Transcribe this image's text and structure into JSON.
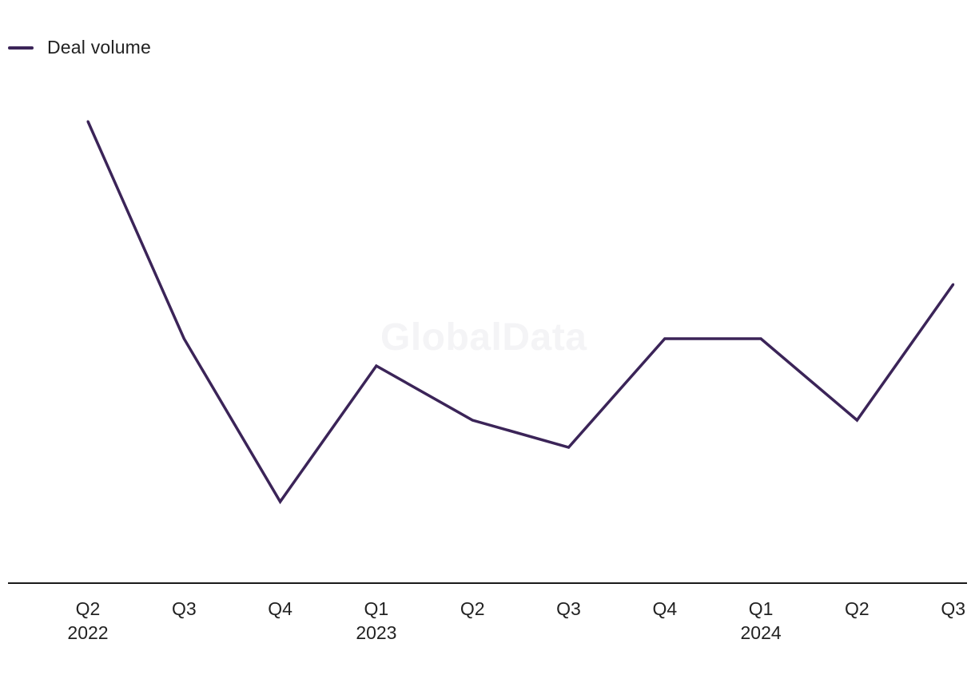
{
  "chart_data": {
    "type": "line",
    "title": "",
    "xlabel": "",
    "ylabel": "",
    "categories": [
      "Q2",
      "Q3",
      "Q4",
      "Q1",
      "Q2",
      "Q3",
      "Q4",
      "Q1",
      "Q2",
      "Q3"
    ],
    "year_labels": [
      "2022",
      "",
      "",
      "2023",
      "",
      "",
      "",
      "2024",
      "",
      ""
    ],
    "series": [
      {
        "name": "Deal volume",
        "color": "#3b2458",
        "values": [
          17,
          9,
          3,
          8,
          6,
          5,
          9,
          9,
          6,
          11
        ]
      }
    ],
    "ylim": [
      0,
      20
    ],
    "grid": false,
    "legend": "top-left"
  },
  "watermark": "GlobalData"
}
